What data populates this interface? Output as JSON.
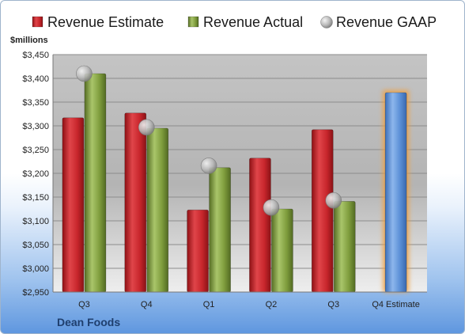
{
  "chart_data": {
    "type": "bar",
    "ylabel": "$millions",
    "ylim": [
      2950,
      3450
    ],
    "ytick_step": 50,
    "grid": true,
    "legend_position": "top",
    "company": "Dean Foods",
    "categories": [
      "Q3",
      "Q4",
      "Q1",
      "Q2",
      "Q3",
      "Q4 Estimate"
    ],
    "series": [
      {
        "name": "Revenue Estimate",
        "kind": "bar",
        "color": "#c8262c",
        "values": [
          3317,
          3327,
          3123,
          3232,
          3292,
          null
        ]
      },
      {
        "name": "Revenue Actual",
        "kind": "bar",
        "color": "#7f9d3d",
        "values": [
          3410,
          3295,
          3212,
          3125,
          3141,
          null
        ]
      },
      {
        "name": "Revenue GAAP",
        "kind": "marker",
        "color": "#b0b0b0",
        "values": [
          3410,
          3297,
          3216,
          3128,
          3143,
          null
        ]
      },
      {
        "name": "",
        "kind": "bar",
        "color": "#5a8fd6",
        "highlight": "#f0a040",
        "values": [
          null,
          null,
          null,
          null,
          null,
          3370
        ]
      }
    ]
  }
}
